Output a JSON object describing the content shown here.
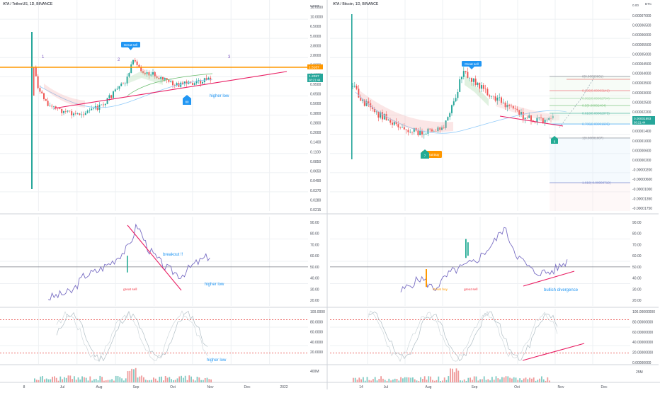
{
  "colors": {
    "up": "#26a69a",
    "down": "#ef5350",
    "grid": "#eef0f3",
    "axis_text": "#4a4f5a",
    "divider": "#cfd3da",
    "trend": "#e91e63",
    "annotation_blue": "#2962ff",
    "signal_blue": "#2196f3",
    "annotation_purple": "#7e57c2",
    "orange": "#ff9800",
    "sell_red": "#f23645",
    "buy_green": "#22ab94",
    "dashed_red": "#e53935",
    "rsi_line": "#7a6fc4"
  },
  "left_chart": {
    "title": "ATA / TetherUS, 1D, BINANCE",
    "price_axis_unit": "USDT",
    "price_ticks": [
      "16.0000",
      "10.0000",
      "6.5000",
      "5.0000",
      "3.8000",
      "2.8000",
      "2.0000",
      "1.4000",
      "0.9500",
      "0.6500",
      "0.5000",
      "0.3800",
      "0.2800",
      "0.2000",
      "0.1400",
      "0.1100",
      "0.0850",
      "0.0650",
      "0.0490",
      "0.0370",
      "0.0280",
      "0.0215"
    ],
    "price_label_orange": "1.5167",
    "price_label_current": "1.2087",
    "countdown": "08:21:44",
    "wave_labels": [
      "1",
      "2",
      "3"
    ],
    "great_sell_label": "Great sell",
    "higher_low_label": "higher low",
    "signal_badge": "80",
    "rsi_ticks": [
      "90.00",
      "80.00",
      "70.00",
      "60.00",
      "50.00",
      "40.00",
      "30.00",
      "20.00"
    ],
    "rsi_breakout_label": "breakout !!",
    "rsi_great_sell_label": "great sell",
    "rsi_higher_low_label": "higher low",
    "stoch_ticks": [
      "100.0000",
      "80.0000",
      "60.0000",
      "40.0000",
      "20.0000"
    ],
    "stoch_higher_low_label": "higher low",
    "volume_tick": "400M",
    "x_ticks": [
      "8",
      "Jul",
      "Aug",
      "Sep",
      "Oct",
      "Nov",
      "Dec",
      "2022"
    ]
  },
  "right_chart": {
    "title": "ATA / Bitcoin, 1D, BINANCE",
    "price_axis_unit": "BTC",
    "price_ticks": [
      "0.00007000",
      "0.00006500",
      "0.00006000",
      "0.00005500",
      "0.00005000",
      "0.00004500",
      "0.00004000",
      "0.00003500",
      "0.00003000",
      "0.00002500",
      "0.00002200",
      "0.00001800",
      "0.00001400",
      "0.00001000",
      "0.00000600",
      "0.00000200",
      "-0.00000200",
      "-0.00000600",
      "-0.00001000",
      "-0.00001350",
      "-0.00001750"
    ],
    "axis_top_label": "0.00",
    "price_label_current": "0.00001893",
    "countdown": "08:21:44",
    "great_sell_label": "Great sell",
    "great_buy_label": "Great Buy",
    "great_buy_badge": "7",
    "signal_badge": "6",
    "fib_levels": [
      {
        "label": "0(0.00003801)",
        "color": "#787b86"
      },
      {
        "label": "0.236(0.00003142)",
        "color": "#f23645"
      },
      {
        "label": "0.382(0.00002734)",
        "color": "#81c784"
      },
      {
        "label": "0.5(0.00002404)",
        "color": "#4caf50"
      },
      {
        "label": "0.618(0.00002075)",
        "color": "#089981"
      },
      {
        "label": "0.786(0.00001605)",
        "color": "#2196f3"
      },
      {
        "label": "1(0.00001007)",
        "color": "#787b86"
      },
      {
        "label": "1.618(-0.00000719)",
        "color": "#3f51b5"
      }
    ],
    "rsi_ticks": [
      "90.00",
      "80.00",
      "70.00",
      "60.00",
      "50.00",
      "40.00",
      "30.00",
      "20.00"
    ],
    "rsi_great_buy_label": "Great buy",
    "rsi_great_sell_label": "great sell",
    "rsi_divergence_label": "bullish divergence",
    "stoch_ticks": [
      "100.00000000",
      "80.00000000",
      "60.00000000",
      "40.00000000",
      "20.00000000",
      "0.00000000"
    ],
    "volume_tick": "25M",
    "x_ticks": [
      "14",
      "Jul",
      "Aug",
      "Sep",
      "Oct",
      "Nov",
      "Dec"
    ]
  }
}
